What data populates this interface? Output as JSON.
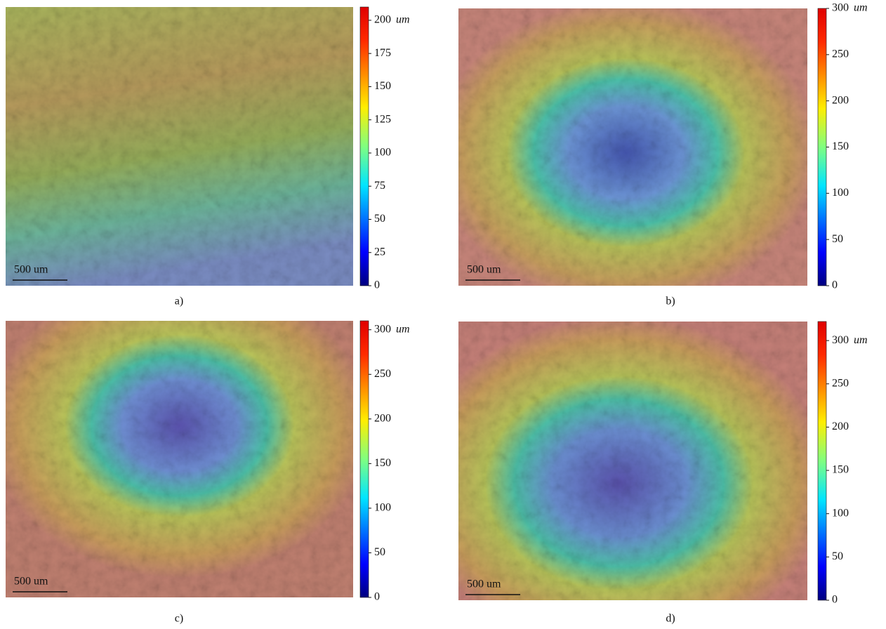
{
  "chart_data": [
    {
      "type": "heatmap",
      "label": "a)",
      "scale_bar": "500 um",
      "unit": "um",
      "ylim": [
        0,
        210
      ],
      "yticks": [
        0,
        25,
        50,
        75,
        100,
        125,
        150,
        175,
        200
      ]
    },
    {
      "type": "heatmap",
      "label": "b)",
      "scale_bar": "500 um",
      "unit": "um",
      "ylim": [
        0,
        300
      ],
      "yticks": [
        0,
        50,
        100,
        150,
        200,
        250,
        300
      ]
    },
    {
      "type": "heatmap",
      "label": "c)",
      "scale_bar": "500 um",
      "unit": "um",
      "ylim": [
        0,
        310
      ],
      "yticks": [
        0,
        50,
        100,
        150,
        200,
        250,
        300
      ]
    },
    {
      "type": "heatmap",
      "label": "d)",
      "scale_bar": "500 um",
      "unit": "um",
      "ylim": [
        0,
        322
      ],
      "yticks": [
        0,
        50,
        100,
        150,
        200,
        250,
        300
      ]
    }
  ]
}
